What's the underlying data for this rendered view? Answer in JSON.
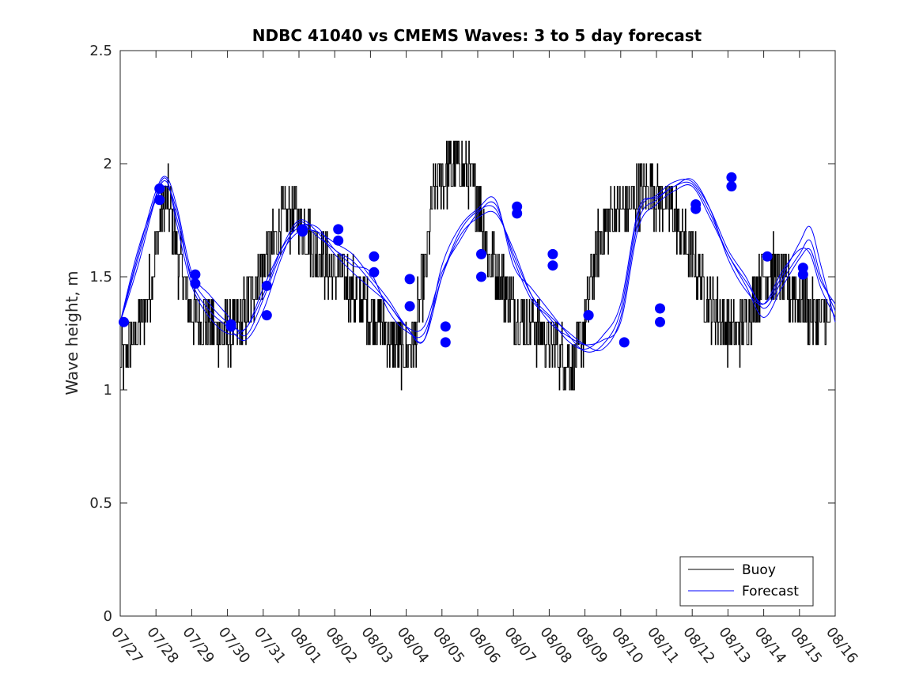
{
  "chart_data": {
    "type": "line",
    "title": "NDBC 41040 vs CMEMS Waves: 3 to 5 day forecast",
    "xlabel": "",
    "ylabel": "Wave height, m",
    "ylim": [
      0,
      2.5
    ],
    "xlim": [
      "07/27",
      "08/16"
    ],
    "x_tick_labels": [
      "07/27",
      "07/28",
      "07/29",
      "07/30",
      "07/31",
      "08/01",
      "08/02",
      "08/03",
      "08/04",
      "08/05",
      "08/06",
      "08/07",
      "08/08",
      "08/09",
      "08/10",
      "08/11",
      "08/12",
      "08/13",
      "08/14",
      "08/15",
      "08/16"
    ],
    "y_tick_labels": [
      "0",
      "0.5",
      "1",
      "1.5",
      "2",
      "2.5"
    ],
    "y_ticks": [
      0,
      0.5,
      1,
      1.5,
      2,
      2.5
    ],
    "grid": false,
    "legend_position": "bottom-right",
    "legend": [
      "Buoy",
      "Forecast"
    ],
    "colors": {
      "buoy": "#000000",
      "forecast": "#0000ff",
      "marker": "#0000ff",
      "axes": "#262626"
    },
    "buoy_anchor": {
      "x_days": [
        0,
        0.3,
        0.6,
        0.9,
        1.1,
        1.3,
        1.6,
        1.9,
        2.2,
        2.5,
        2.8,
        3.1,
        3.4,
        3.7,
        4.0,
        4.3,
        4.6,
        4.9,
        5.2,
        5.5,
        5.8,
        6.1,
        6.4,
        6.7,
        7.0,
        7.3,
        7.6,
        7.9,
        8.2,
        8.5,
        8.8,
        9.1,
        9.4,
        9.7,
        10.0,
        10.3,
        10.6,
        10.9,
        11.2,
        11.5,
        11.8,
        12.1,
        12.4,
        12.7,
        13.0,
        13.3,
        13.6,
        13.9,
        14.2,
        14.5,
        14.8,
        15.1,
        15.4,
        15.7,
        16.0,
        16.3,
        16.6,
        16.9,
        17.2,
        17.5,
        17.8,
        18.1,
        18.4,
        18.7,
        19.0,
        19.3,
        19.6,
        19.9
      ],
      "y": [
        1.1,
        1.2,
        1.3,
        1.5,
        1.75,
        1.85,
        1.6,
        1.4,
        1.3,
        1.3,
        1.25,
        1.25,
        1.3,
        1.45,
        1.55,
        1.65,
        1.75,
        1.78,
        1.7,
        1.6,
        1.55,
        1.5,
        1.45,
        1.4,
        1.35,
        1.3,
        1.2,
        1.15,
        1.2,
        1.5,
        1.9,
        1.95,
        2.0,
        1.95,
        1.85,
        1.6,
        1.5,
        1.4,
        1.3,
        1.3,
        1.25,
        1.2,
        1.15,
        1.1,
        1.3,
        1.6,
        1.75,
        1.8,
        1.8,
        1.85,
        1.9,
        1.85,
        1.8,
        1.7,
        1.6,
        1.45,
        1.35,
        1.3,
        1.25,
        1.3,
        1.45,
        1.55,
        1.5,
        1.45,
        1.4,
        1.35,
        1.3,
        1.3
      ]
    },
    "forecast_series": [
      {
        "x_days": [
          0,
          0.5,
          1.0,
          1.3,
          1.6,
          2.0,
          2.5,
          3.0,
          3.5,
          4.0,
          4.5,
          5.0,
          5.5,
          6.0,
          6.5,
          7.0,
          7.5,
          8.0,
          8.5,
          9.0,
          9.5,
          10.0,
          10.5,
          11.0,
          11.5,
          12.0,
          12.5,
          13.0,
          13.5,
          14.0,
          14.5,
          15.0,
          15.5,
          16.0,
          16.5,
          17.0,
          17.5,
          18.0,
          18.5,
          19.0,
          19.3,
          19.6,
          20.0
        ],
        "y": [
          1.3,
          1.55,
          1.85,
          1.92,
          1.75,
          1.5,
          1.38,
          1.3,
          1.27,
          1.45,
          1.62,
          1.72,
          1.72,
          1.62,
          1.57,
          1.48,
          1.38,
          1.28,
          1.22,
          1.5,
          1.7,
          1.79,
          1.8,
          1.6,
          1.42,
          1.33,
          1.26,
          1.2,
          1.18,
          1.32,
          1.75,
          1.84,
          1.9,
          1.91,
          1.78,
          1.6,
          1.48,
          1.38,
          1.5,
          1.65,
          1.72,
          1.55,
          1.3
        ]
      },
      {
        "x_days": [
          0,
          0.5,
          1.0,
          1.3,
          1.6,
          2.0,
          2.5,
          3.0,
          3.5,
          4.0,
          4.5,
          5.0,
          5.5,
          6.0,
          6.5,
          7.0,
          7.5,
          8.0,
          8.5,
          9.0,
          9.5,
          10.0,
          10.5,
          11.0,
          11.5,
          12.0,
          12.5,
          13.0,
          13.5,
          14.0,
          14.5,
          15.0,
          15.5,
          16.0,
          16.5,
          17.0,
          17.5,
          18.0,
          18.5,
          19.0,
          19.3,
          19.6,
          20.0
        ],
        "y": [
          1.3,
          1.6,
          1.88,
          1.94,
          1.8,
          1.52,
          1.42,
          1.33,
          1.24,
          1.4,
          1.6,
          1.7,
          1.7,
          1.65,
          1.6,
          1.5,
          1.4,
          1.28,
          1.22,
          1.55,
          1.72,
          1.8,
          1.84,
          1.55,
          1.45,
          1.35,
          1.25,
          1.17,
          1.2,
          1.35,
          1.78,
          1.86,
          1.92,
          1.92,
          1.8,
          1.62,
          1.5,
          1.36,
          1.48,
          1.6,
          1.66,
          1.5,
          1.35
        ]
      },
      {
        "x_days": [
          0,
          0.5,
          1.0,
          1.3,
          1.6,
          2.0,
          2.5,
          3.0,
          3.5,
          4.0,
          4.5,
          5.0,
          5.5,
          6.0,
          6.5,
          7.0,
          7.5,
          8.0,
          8.5,
          9.0,
          9.5,
          10.0,
          10.5,
          11.0,
          11.5,
          12.0,
          12.5,
          13.0,
          13.5,
          14.0,
          14.5,
          15.0,
          15.5,
          16.0,
          16.5,
          17.0,
          17.5,
          18.0,
          18.5,
          19.0,
          19.3,
          19.6,
          20.0
        ],
        "y": [
          1.3,
          1.62,
          1.84,
          1.9,
          1.78,
          1.48,
          1.35,
          1.28,
          1.22,
          1.35,
          1.58,
          1.74,
          1.68,
          1.62,
          1.55,
          1.52,
          1.35,
          1.26,
          1.25,
          1.5,
          1.68,
          1.76,
          1.78,
          1.62,
          1.42,
          1.3,
          1.24,
          1.2,
          1.22,
          1.3,
          1.72,
          1.82,
          1.88,
          1.9,
          1.76,
          1.6,
          1.46,
          1.32,
          1.45,
          1.58,
          1.62,
          1.48,
          1.38
        ]
      },
      {
        "x_days": [
          0,
          0.5,
          1.0,
          1.3,
          1.6,
          2.0,
          2.5,
          3.0,
          3.5,
          4.0,
          4.5,
          5.0,
          5.5,
          6.0,
          6.5,
          7.0,
          7.5,
          8.0,
          8.5,
          9.0,
          9.5,
          10.0,
          10.5,
          11.0,
          11.5,
          12.0,
          12.5,
          13.0,
          13.5,
          14.0,
          14.5,
          15.0,
          15.5,
          16.0,
          16.5,
          17.0,
          17.5,
          18.0,
          18.5,
          19.0,
          19.3,
          19.6,
          20.0
        ],
        "y": [
          1.3,
          1.58,
          1.86,
          1.93,
          1.72,
          1.46,
          1.32,
          1.25,
          1.27,
          1.42,
          1.62,
          1.75,
          1.7,
          1.6,
          1.52,
          1.45,
          1.38,
          1.28,
          1.28,
          1.52,
          1.66,
          1.78,
          1.82,
          1.58,
          1.4,
          1.32,
          1.22,
          1.18,
          1.24,
          1.38,
          1.8,
          1.85,
          1.9,
          1.93,
          1.8,
          1.58,
          1.44,
          1.38,
          1.52,
          1.62,
          1.6,
          1.45,
          1.32
        ]
      }
    ],
    "markers": {
      "x_days": [
        0.1,
        1.1,
        1.1,
        2.1,
        2.1,
        3.1,
        3.1,
        4.1,
        4.1,
        5.1,
        5.1,
        6.1,
        6.1,
        7.1,
        7.1,
        8.1,
        8.1,
        9.1,
        9.1,
        10.1,
        10.1,
        11.1,
        11.1,
        12.1,
        12.1,
        13.1,
        13.1,
        14.1,
        15.1,
        15.1,
        16.1,
        16.1,
        17.1,
        17.1,
        18.1,
        19.1,
        19.1
      ],
      "y": [
        1.3,
        1.89,
        1.84,
        1.51,
        1.47,
        1.29,
        1.28,
        1.46,
        1.33,
        1.7,
        1.71,
        1.71,
        1.66,
        1.59,
        1.52,
        1.49,
        1.37,
        1.28,
        1.21,
        1.6,
        1.5,
        1.81,
        1.78,
        1.6,
        1.55,
        1.33,
        1.33,
        1.21,
        1.36,
        1.3,
        1.82,
        1.8,
        1.94,
        1.9,
        1.59,
        1.54,
        1.51
      ]
    }
  }
}
